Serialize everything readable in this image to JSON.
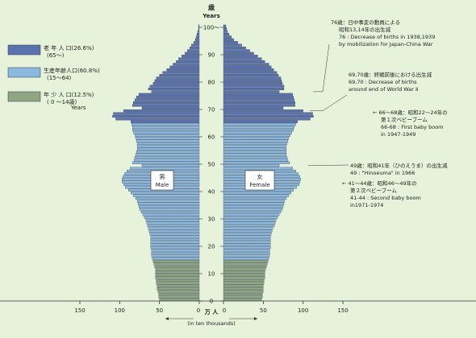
{
  "chart_data": {
    "type": "bar",
    "orientation": "horizontal-population-pyramid",
    "y_title_ja": "歳",
    "y_title_en": "Years",
    "y_ticks": [
      0,
      10,
      20,
      30,
      40,
      50,
      60,
      70,
      80,
      90,
      100
    ],
    "y_top_label": "100～",
    "x_ticks": [
      150,
      100,
      50,
      0,
      50,
      100,
      150
    ],
    "x_unit_ja": "万 人",
    "x_unit_en": "(in ten thousands)",
    "male_label_ja": "男",
    "male_label_en": "Male",
    "female_label_ja": "女",
    "female_label_en": "Female",
    "legend": [
      {
        "line1": "老 年 人 口(26.6%)",
        "line2": "(65～)",
        "color": "#5a72ad"
      },
      {
        "line1": "生産年齢人口(60.8%)",
        "line2": "(15～64)",
        "color": "#8db8de"
      },
      {
        "line1": "年 少 人 口(12.5%)",
        "line2": "( 0 ～14歳)",
        "color": "#8fa683"
      }
    ],
    "legend_years": "Years",
    "annotations": [
      {
        "text": [
          "76歳：日中事変の動員による",
          "昭和13,14年の出生減",
          "76 : Decrease of births in 1938,1939",
          "by mobilization for Japan-China War"
        ],
        "age": 76
      },
      {
        "text": [
          "69,70歳：終戦前後における出生減",
          "69,70 : Decrease of births",
          "around end of World War Ⅱ"
        ],
        "age": 70
      },
      {
        "text": [
          "← 66～68歳：昭和22～24年の",
          "第１次ベビーブーム",
          "66-68 : First baby boom",
          "in 1947-1949"
        ],
        "age": 67
      },
      {
        "text": [
          "49歳：昭和41年（ひのえうま）の出生減",
          "49 : \"Hinoeuma\" in 1966"
        ],
        "age": 49
      },
      {
        "text": [
          "← 41～44歳：昭和46～49年の",
          "第２次ベビーブーム",
          "41-44 : Second baby boom",
          "in1971-1974"
        ],
        "age": 42
      }
    ],
    "series": [
      {
        "name": "男",
        "values": [
          50,
          51,
          51,
          52,
          53,
          53,
          54,
          54,
          55,
          55,
          55,
          55,
          56,
          57,
          58,
          59,
          60,
          60,
          60,
          61,
          61,
          61,
          61,
          61,
          62,
          63,
          64,
          65,
          66,
          67,
          69,
          71,
          73,
          75,
          76,
          77,
          78,
          80,
          83,
          86,
          89,
          93,
          95,
          97,
          97,
          96,
          94,
          91,
          87,
          72,
          84,
          82,
          81,
          80,
          79,
          78,
          78,
          78,
          79,
          80,
          81,
          83,
          84,
          84,
          85,
          86,
          105,
          109,
          108,
          95,
          72,
          84,
          83,
          81,
          79,
          76,
          60,
          64,
          62,
          58,
          56,
          54,
          50,
          46,
          41,
          37,
          33,
          29,
          26,
          22,
          18,
          15,
          12,
          10,
          7,
          5,
          4,
          3,
          2,
          1,
          1
        ]
      },
      {
        "name": "女",
        "values": [
          48,
          49,
          49,
          50,
          50,
          50,
          51,
          51,
          52,
          52,
          52,
          53,
          54,
          55,
          56,
          57,
          58,
          58,
          58,
          59,
          59,
          59,
          59,
          59,
          60,
          61,
          62,
          64,
          65,
          66,
          68,
          70,
          72,
          74,
          75,
          76,
          77,
          79,
          82,
          85,
          88,
          92,
          95,
          96,
          97,
          96,
          94,
          91,
          87,
          70,
          83,
          81,
          80,
          79,
          79,
          79,
          79,
          80,
          81,
          82,
          84,
          86,
          88,
          89,
          91,
          93,
          109,
          113,
          112,
          100,
          75,
          90,
          90,
          89,
          88,
          87,
          70,
          76,
          76,
          74,
          73,
          72,
          69,
          67,
          63,
          60,
          57,
          52,
          48,
          43,
          38,
          33,
          28,
          23,
          18,
          13,
          10,
          7,
          5,
          4,
          3
        ]
      }
    ],
    "xlim": [
      0,
      150
    ],
    "ylim": [
      0,
      100
    ]
  }
}
